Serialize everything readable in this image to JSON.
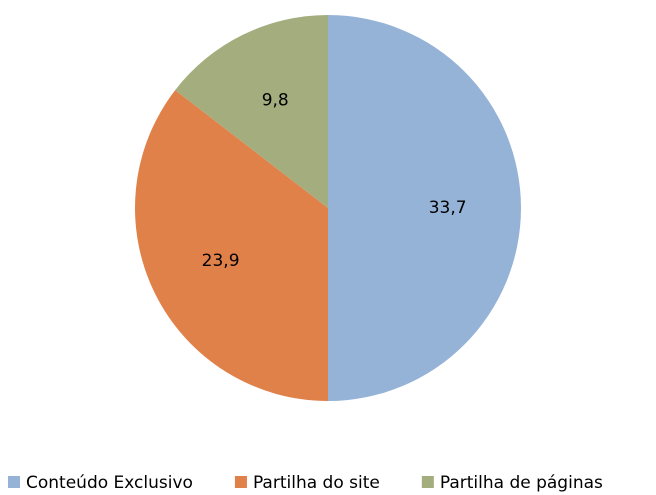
{
  "chart_data": {
    "type": "pie",
    "categories": [
      "Conteúdo Exclusivo",
      "Partilha do site",
      "Partilha de páginas"
    ],
    "values": [
      33.7,
      23.9,
      9.8
    ],
    "value_labels": [
      "33,7",
      "23,9",
      "9,8"
    ],
    "colors": [
      "#95b3d7",
      "#e0814a",
      "#a3ad7e"
    ],
    "legend": "bottom"
  }
}
